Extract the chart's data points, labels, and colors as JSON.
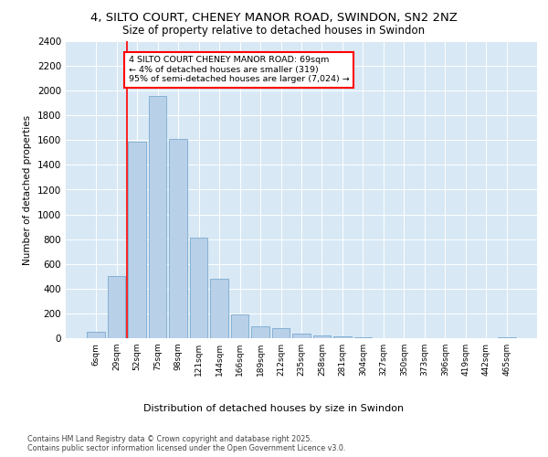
{
  "title_line1": "4, SILTO COURT, CHENEY MANOR ROAD, SWINDON, SN2 2NZ",
  "title_line2": "Size of property relative to detached houses in Swindon",
  "xlabel": "Distribution of detached houses by size in Swindon",
  "ylabel": "Number of detached properties",
  "categories": [
    "6sqm",
    "29sqm",
    "52sqm",
    "75sqm",
    "98sqm",
    "121sqm",
    "144sqm",
    "166sqm",
    "189sqm",
    "212sqm",
    "235sqm",
    "258sqm",
    "281sqm",
    "304sqm",
    "327sqm",
    "350sqm",
    "373sqm",
    "396sqm",
    "419sqm",
    "442sqm",
    "465sqm"
  ],
  "values": [
    55,
    500,
    1590,
    1960,
    1610,
    810,
    480,
    195,
    95,
    80,
    35,
    20,
    15,
    5,
    0,
    0,
    0,
    0,
    0,
    0,
    10
  ],
  "bar_color": "#b8d0e8",
  "bar_edge_color": "#7aaad0",
  "vline_color": "red",
  "vline_position": 1.5,
  "annotation_text": "4 SILTO COURT CHENEY MANOR ROAD: 69sqm\n← 4% of detached houses are smaller (319)\n95% of semi-detached houses are larger (7,024) →",
  "annotation_box_color": "white",
  "annotation_box_edge_color": "red",
  "ylim": [
    0,
    2400
  ],
  "yticks": [
    0,
    200,
    400,
    600,
    800,
    1000,
    1200,
    1400,
    1600,
    1800,
    2000,
    2200,
    2400
  ],
  "background_color": "#d8e8f5",
  "footer_line1": "Contains HM Land Registry data © Crown copyright and database right 2025.",
  "footer_line2": "Contains public sector information licensed under the Open Government Licence v3.0."
}
